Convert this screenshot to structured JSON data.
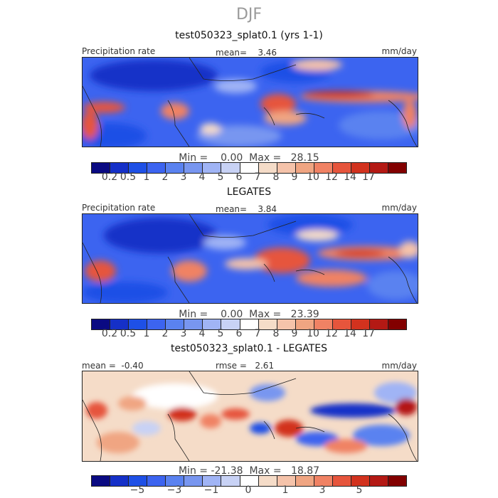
{
  "season": "DJF",
  "panels": [
    {
      "title": "test050323_splat0.1 (yrs 1-1)",
      "field": "Precipitation rate",
      "stat": "mean=    3.46",
      "units": "mm/day",
      "minmax": "Min =    0.00  Max =   28.15"
    },
    {
      "title": "LEGATES",
      "field": "Precipitation rate",
      "stat": "mean=    3.84",
      "units": "mm/day",
      "minmax": "Min =    0.00  Max =   23.39"
    },
    {
      "title": "test050323_splat0.1 - LEGATES",
      "field": "mean =  -0.40",
      "stat": "rmse =   2.61",
      "units": "mm/day",
      "minmax": "Min = -21.38  Max =   18.87"
    }
  ],
  "colorbars": {
    "precip": {
      "colors": [
        "#0a0a82",
        "#1530c8",
        "#1e50e6",
        "#3c64f0",
        "#5a82f0",
        "#7896f0",
        "#a0b4f5",
        "#c8d2f5",
        "#ffffff",
        "#f5dcc8",
        "#f5c3aa",
        "#f0a582",
        "#f08264",
        "#e6553c",
        "#d2321e",
        "#b41914",
        "#820000"
      ],
      "ticks": [
        "0.2",
        "0.5",
        "1",
        "2",
        "3",
        "4",
        "5",
        "6",
        "7",
        "8",
        "9",
        "10",
        "12",
        "14",
        "17"
      ]
    },
    "diff": {
      "colors": [
        "#0a0a82",
        "#1530c8",
        "#1e50e6",
        "#3c64f0",
        "#5a82f0",
        "#7896f0",
        "#a0b4f5",
        "#c8d2f5",
        "#ffffff",
        "#f5dcc8",
        "#f5c3aa",
        "#f0a582",
        "#f08264",
        "#e6553c",
        "#d2321e",
        "#b41914",
        "#820000"
      ],
      "ticks": [
        "−5",
        "−3",
        "−1",
        "0",
        "1",
        "3",
        "5"
      ]
    }
  },
  "chart_data": [
    {
      "type": "heatmap",
      "title": "test050323_splat0.1 (yrs 1-1)",
      "variable": "Precipitation rate",
      "units": "mm/day",
      "mean": 3.46,
      "min": 0.0,
      "max": 28.15,
      "colorbar_levels": [
        0.2,
        0.5,
        1,
        2,
        3,
        4,
        5,
        6,
        7,
        8,
        9,
        10,
        12,
        14,
        17
      ]
    },
    {
      "type": "heatmap",
      "title": "LEGATES",
      "variable": "Precipitation rate",
      "units": "mm/day",
      "mean": 3.84,
      "min": 0.0,
      "max": 23.39,
      "colorbar_levels": [
        0.2,
        0.5,
        1,
        2,
        3,
        4,
        5,
        6,
        7,
        8,
        9,
        10,
        12,
        14,
        17
      ]
    },
    {
      "type": "heatmap",
      "title": "test050323_splat0.1 - LEGATES",
      "units": "mm/day",
      "mean": -0.4,
      "rmse": 2.61,
      "min": -21.38,
      "max": 18.87,
      "colorbar_levels": [
        -5,
        -3,
        -1,
        0,
        1,
        3,
        5
      ]
    }
  ]
}
